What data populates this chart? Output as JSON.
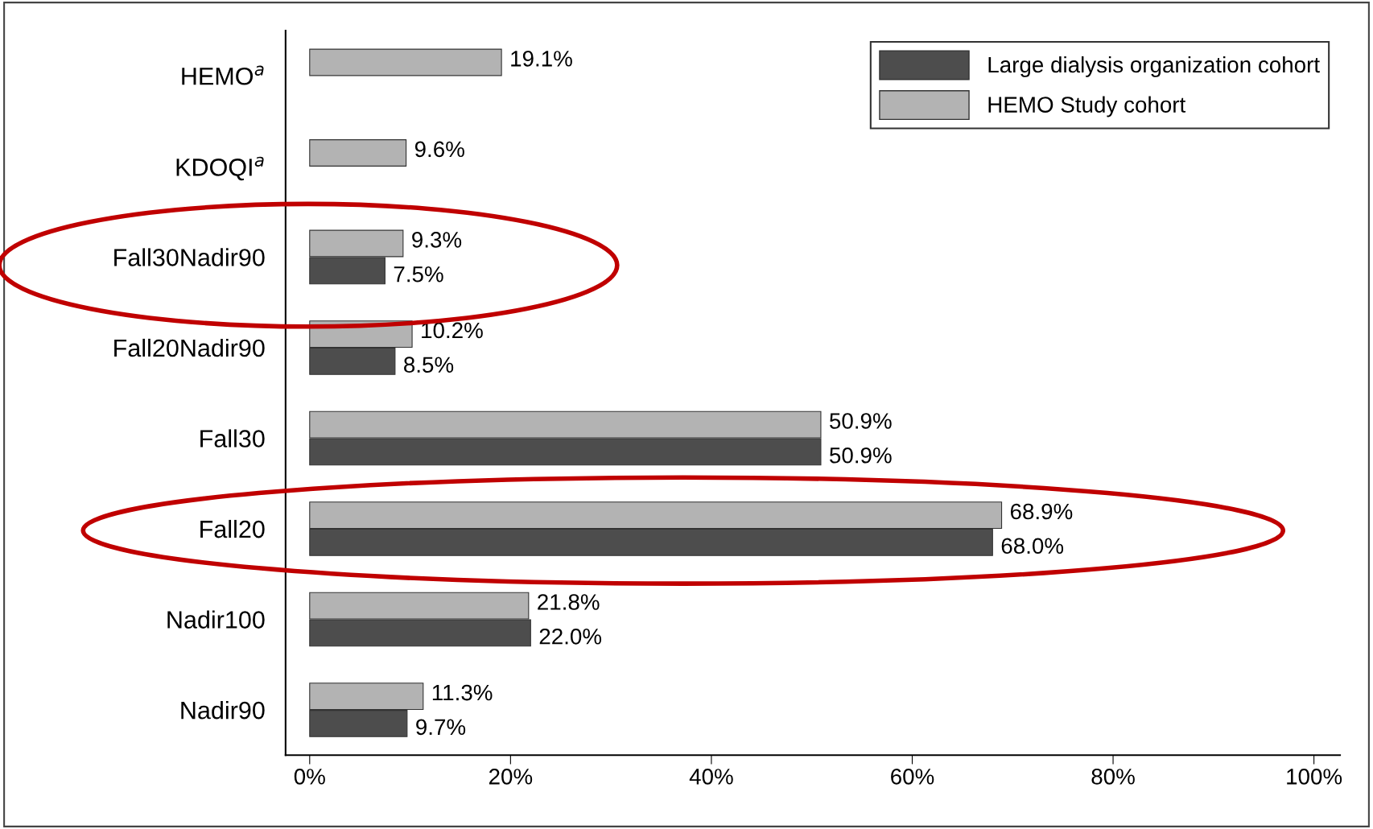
{
  "chart_data": {
    "type": "bar",
    "orientation": "horizontal",
    "categories": [
      "HEMO$^{a}$",
      "KDOQI$^{a}$",
      "Fall30Nadir90",
      "Fall20Nadir90",
      "Fall30",
      "Fall20",
      "Nadir100",
      "Nadir90"
    ],
    "series": [
      {
        "name": "Large dialysis organization cohort",
        "color": "#4d4d4d",
        "values": [
          null,
          null,
          7.5,
          8.5,
          50.9,
          68.0,
          22.0,
          9.7
        ],
        "value_labels": [
          null,
          null,
          "7.5%",
          "8.5%",
          "50.9%",
          "68.0%",
          "22.0%",
          "9.7%"
        ]
      },
      {
        "name": "HEMO Study cohort",
        "color": "#b3b3b3",
        "values": [
          19.1,
          9.6,
          9.3,
          10.2,
          50.9,
          68.9,
          21.8,
          11.3
        ],
        "value_labels": [
          "19.1%",
          "9.6%",
          "9.3%",
          "10.2%",
          "50.9%",
          "68.9%",
          "21.8%",
          "11.3%"
        ]
      }
    ],
    "xlim": [
      -2.4,
      102.6
    ],
    "xticks": [
      {
        "value": 0,
        "label": "0%"
      },
      {
        "value": 20,
        "label": "20%"
      },
      {
        "value": 40,
        "label": "40%"
      },
      {
        "value": 60,
        "label": "60%"
      },
      {
        "value": 80,
        "label": "80%"
      },
      {
        "value": 100,
        "label": "100%"
      }
    ],
    "legend": "top right",
    "grid": false
  }
}
